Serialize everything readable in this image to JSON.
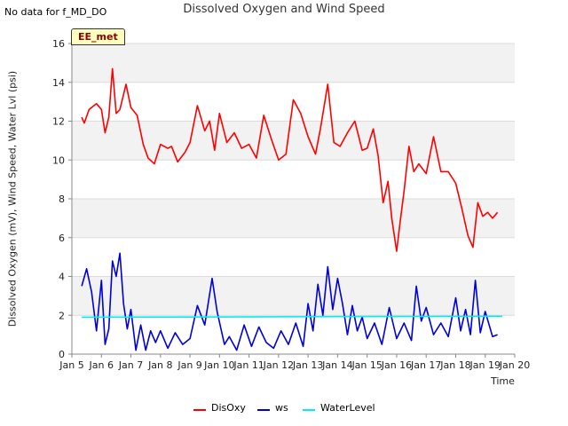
{
  "header": {
    "status_text": "No data for f_MD_DO",
    "tag_label": "EE_met"
  },
  "chart_data": {
    "type": "line",
    "title": "Dissolved Oxygen and Wind Speed",
    "xlabel": "Time",
    "ylabel": "Dissolved Oxygen (mV), Wind Speed, Water Lvl (psi)",
    "xlim": [
      "2023-01-05",
      "2023-01-20"
    ],
    "ylim": [
      0,
      16
    ],
    "x_tick_labels": [
      "Jan 5",
      "Jan 6",
      "Jan 7",
      "Jan 8",
      "Jan 9",
      "Jan 10",
      "Jan 11",
      "Jan 12",
      "Jan 13",
      "Jan 14",
      "Jan 15",
      "Jan 16",
      "Jan 17",
      "Jan 18",
      "Jan 19",
      "Jan 20"
    ],
    "y_ticks": [
      0,
      2,
      4,
      6,
      8,
      10,
      12,
      14,
      16
    ],
    "grid": true,
    "legend_position": "bottom",
    "series": [
      {
        "name": "DisOxy",
        "color": "#ff0000",
        "x": [
          "2023-01-05T08:00",
          "2023-01-05T10:00",
          "2023-01-05T14:00",
          "2023-01-05T20:00",
          "2023-01-06T00:00",
          "2023-01-06T03:00",
          "2023-01-06T06:00",
          "2023-01-06T09:00",
          "2023-01-06T12:00",
          "2023-01-06T15:00",
          "2023-01-06T20:00",
          "2023-01-07T00:00",
          "2023-01-07T05:00",
          "2023-01-07T10:00",
          "2023-01-07T14:00",
          "2023-01-07T19:00",
          "2023-01-08T00:00",
          "2023-01-08T06:00",
          "2023-01-08T09:00",
          "2023-01-08T14:00",
          "2023-01-08T20:00",
          "2023-01-09T00:00",
          "2023-01-09T06:00",
          "2023-01-09T12:00",
          "2023-01-09T16:00",
          "2023-01-09T20:00",
          "2023-01-10T00:00",
          "2023-01-10T06:00",
          "2023-01-10T12:00",
          "2023-01-10T18:00",
          "2023-01-11T00:00",
          "2023-01-11T06:00",
          "2023-01-11T12:00",
          "2023-01-11T18:00",
          "2023-01-12T00:00",
          "2023-01-12T06:00",
          "2023-01-12T12:00",
          "2023-01-12T18:00",
          "2023-01-13T00:00",
          "2023-01-13T06:00",
          "2023-01-13T10:00",
          "2023-01-13T16:00",
          "2023-01-13T21:00",
          "2023-01-14T02:00",
          "2023-01-14T08:00",
          "2023-01-14T14:00",
          "2023-01-14T20:00",
          "2023-01-15T00:00",
          "2023-01-15T05:00",
          "2023-01-15T09:00",
          "2023-01-15T13:00",
          "2023-01-15T17:00",
          "2023-01-15T20:00",
          "2023-01-16T00:00",
          "2023-01-16T03:00",
          "2023-01-16T06:00",
          "2023-01-16T10:00",
          "2023-01-16T14:00",
          "2023-01-16T18:00",
          "2023-01-17T00:00",
          "2023-01-17T06:00",
          "2023-01-17T12:00",
          "2023-01-17T18:00",
          "2023-01-18T00:00",
          "2023-01-18T05:00",
          "2023-01-18T10:00",
          "2023-01-18T14:00",
          "2023-01-18T18:00",
          "2023-01-18T22:00",
          "2023-01-19T02:00",
          "2023-01-19T06:00",
          "2023-01-19T10:00"
        ],
        "values": [
          12.2,
          11.9,
          12.6,
          12.9,
          12.6,
          11.4,
          12.2,
          14.7,
          12.4,
          12.6,
          13.9,
          12.7,
          12.3,
          10.8,
          10.1,
          9.8,
          10.8,
          10.6,
          10.7,
          9.9,
          10.4,
          10.9,
          12.8,
          11.5,
          12.0,
          10.5,
          12.4,
          10.9,
          11.4,
          10.6,
          10.8,
          10.1,
          12.3,
          11.1,
          10.0,
          10.3,
          13.1,
          12.4,
          11.2,
          10.3,
          11.6,
          13.9,
          10.9,
          10.7,
          11.4,
          12.0,
          10.5,
          10.6,
          11.6,
          10.2,
          7.8,
          8.9,
          7.0,
          5.3,
          6.9,
          8.4,
          10.7,
          9.4,
          9.8,
          9.3,
          11.2,
          9.4,
          9.4,
          8.8,
          7.5,
          6.1,
          5.5,
          7.8,
          7.1,
          7.3,
          7.0,
          7.3
        ]
      },
      {
        "name": "ws",
        "color": "#0000dd",
        "x": [
          "2023-01-05T08:00",
          "2023-01-05T12:00",
          "2023-01-05T16:00",
          "2023-01-05T20:00",
          "2023-01-06T00:00",
          "2023-01-06T03:00",
          "2023-01-06T06:00",
          "2023-01-06T09:00",
          "2023-01-06T12:00",
          "2023-01-06T15:00",
          "2023-01-06T18:00",
          "2023-01-06T21:00",
          "2023-01-07T00:00",
          "2023-01-07T04:00",
          "2023-01-07T08:00",
          "2023-01-07T12:00",
          "2023-01-07T16:00",
          "2023-01-07T20:00",
          "2023-01-08T00:00",
          "2023-01-08T06:00",
          "2023-01-08T12:00",
          "2023-01-08T18:00",
          "2023-01-09T00:00",
          "2023-01-09T06:00",
          "2023-01-09T12:00",
          "2023-01-09T18:00",
          "2023-01-09T22:00",
          "2023-01-10T04:00",
          "2023-01-10T08:00",
          "2023-01-10T14:00",
          "2023-01-10T20:00",
          "2023-01-11T02:00",
          "2023-01-11T08:00",
          "2023-01-11T14:00",
          "2023-01-11T20:00",
          "2023-01-12T02:00",
          "2023-01-12T08:00",
          "2023-01-12T14:00",
          "2023-01-12T20:00",
          "2023-01-13T00:00",
          "2023-01-13T04:00",
          "2023-01-13T08:00",
          "2023-01-13T12:00",
          "2023-01-13T16:00",
          "2023-01-13T20:00",
          "2023-01-14T00:00",
          "2023-01-14T04:00",
          "2023-01-14T08:00",
          "2023-01-14T12:00",
          "2023-01-14T16:00",
          "2023-01-14T20:00",
          "2023-01-15T00:00",
          "2023-01-15T06:00",
          "2023-01-15T12:00",
          "2023-01-15T18:00",
          "2023-01-16T00:00",
          "2023-01-16T06:00",
          "2023-01-16T12:00",
          "2023-01-16T16:00",
          "2023-01-16T20:00",
          "2023-01-17T00:00",
          "2023-01-17T06:00",
          "2023-01-17T12:00",
          "2023-01-17T18:00",
          "2023-01-18T00:00",
          "2023-01-18T04:00",
          "2023-01-18T08:00",
          "2023-01-18T12:00",
          "2023-01-18T16:00",
          "2023-01-18T20:00",
          "2023-01-19T00:00",
          "2023-01-19T06:00",
          "2023-01-19T10:00"
        ],
        "values": [
          3.5,
          4.4,
          3.2,
          1.2,
          3.8,
          0.5,
          1.3,
          4.8,
          4.0,
          5.2,
          2.6,
          1.3,
          2.3,
          0.2,
          1.5,
          0.2,
          1.2,
          0.6,
          1.2,
          0.3,
          1.1,
          0.5,
          0.8,
          2.5,
          1.5,
          3.9,
          2.2,
          0.5,
          0.9,
          0.2,
          1.5,
          0.4,
          1.4,
          0.6,
          0.3,
          1.2,
          0.5,
          1.6,
          0.4,
          2.6,
          1.2,
          3.6,
          2.0,
          4.5,
          2.3,
          3.9,
          2.6,
          1.0,
          2.5,
          1.2,
          1.9,
          0.8,
          1.6,
          0.5,
          2.4,
          0.8,
          1.6,
          0.7,
          3.5,
          1.7,
          2.4,
          1.0,
          1.6,
          0.9,
          2.9,
          1.2,
          2.3,
          1.0,
          3.8,
          1.1,
          2.2,
          0.9,
          1.0
        ]
      },
      {
        "name": "WaterLevel",
        "color": "#00eeee",
        "x": [
          "2023-01-05T08:00",
          "2023-01-19T14:00"
        ],
        "values": [
          1.9,
          1.95
        ]
      }
    ]
  }
}
